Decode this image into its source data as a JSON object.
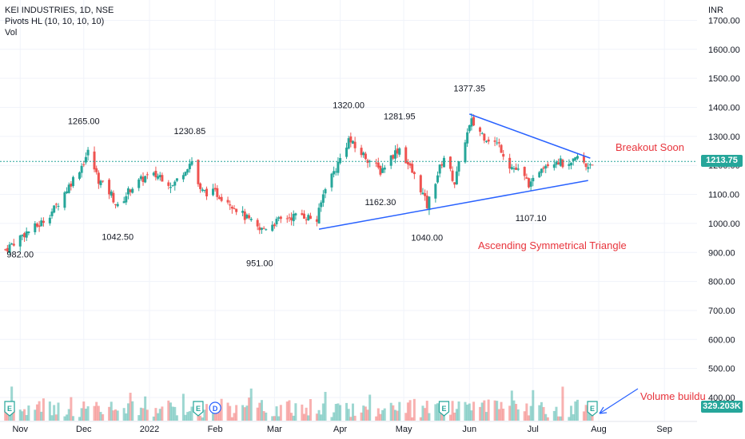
{
  "header": {
    "symbol_line": "KEI INDUSTRIES, 1D, NSE",
    "indicator_pivots": "Pivots HL (10, 10, 10, 10)",
    "indicator_vol": "Vol"
  },
  "price_axis": {
    "currency": "INR",
    "ticks": [
      "1700.00",
      "1600.00",
      "1500.00",
      "1400.00",
      "1300.00",
      "1200.00",
      "1100.00",
      "1000.00",
      "900.00",
      "800.00",
      "700.00",
      "600.00",
      "500.00",
      "400.00"
    ]
  },
  "badges": {
    "last_price": "1213.75",
    "volume": "329.203K",
    "price_color": "#26a69a",
    "volume_color": "#26a69a"
  },
  "time_axis": {
    "labels": [
      "Nov",
      "Dec",
      "2022",
      "Feb",
      "Mar",
      "Apr",
      "May",
      "Jun",
      "Jul",
      "Aug",
      "Sep"
    ]
  },
  "annotations": {
    "breakout": "Breakout Soon",
    "pattern": "Ascending Symmetrical Triangle",
    "volume": "Volume buildu"
  },
  "colors": {
    "up": "#26a69a",
    "down": "#ef5350",
    "trendline": "#2962ff",
    "annotation": "#e8343c",
    "price_line": "#26a69a"
  },
  "chart_data": {
    "type": "candlestick",
    "symbol": "KEI INDUSTRIES",
    "interval": "1D",
    "exchange": "NSE",
    "last_price": 1213.75,
    "last_volume_k": 329.203,
    "ylim": [
      400,
      1700
    ],
    "pivots": [
      {
        "date": "2021-11-01",
        "value": 982.0,
        "type": "low"
      },
      {
        "date": "2021-12-01",
        "value": 1265.0,
        "type": "high"
      },
      {
        "date": "2021-12-17",
        "value": 1042.5,
        "type": "low"
      },
      {
        "date": "2022-01-20",
        "value": 1230.85,
        "type": "high"
      },
      {
        "date": "2022-02-22",
        "value": 951.0,
        "type": "low"
      },
      {
        "date": "2022-04-05",
        "value": 1320.0,
        "type": "high"
      },
      {
        "date": "2022-04-20",
        "value": 1162.3,
        "type": "low"
      },
      {
        "date": "2022-04-29",
        "value": 1281.95,
        "type": "high"
      },
      {
        "date": "2022-05-12",
        "value": 1040.0,
        "type": "low"
      },
      {
        "date": "2022-06-01",
        "value": 1377.35,
        "type": "high"
      },
      {
        "date": "2022-06-30",
        "value": 1107.1,
        "type": "low"
      }
    ],
    "trendlines": [
      {
        "name": "upper",
        "from": {
          "date": "2022-06-01",
          "value": 1377
        },
        "to": {
          "date": "2022-07-28",
          "value": 1225
        }
      },
      {
        "name": "lower",
        "from": {
          "date": "2022-03-22",
          "value": 980
        },
        "to": {
          "date": "2022-07-27",
          "value": 1148
        }
      }
    ],
    "series": [
      {
        "name": "price",
        "points": [
          {
            "date": "2021-10-25",
            "value": 910
          },
          {
            "date": "2021-10-29",
            "value": 935
          },
          {
            "date": "2021-11-03",
            "value": 965
          },
          {
            "date": "2021-11-10",
            "value": 995
          },
          {
            "date": "2021-11-17",
            "value": 1050
          },
          {
            "date": "2021-11-24",
            "value": 1130
          },
          {
            "date": "2021-11-30",
            "value": 1200
          },
          {
            "date": "2021-12-03",
            "value": 1245
          },
          {
            "date": "2021-12-08",
            "value": 1150
          },
          {
            "date": "2021-12-14",
            "value": 1100
          },
          {
            "date": "2021-12-17",
            "value": 1055
          },
          {
            "date": "2021-12-23",
            "value": 1120
          },
          {
            "date": "2021-12-30",
            "value": 1160
          },
          {
            "date": "2022-01-06",
            "value": 1165
          },
          {
            "date": "2022-01-12",
            "value": 1130
          },
          {
            "date": "2022-01-18",
            "value": 1190
          },
          {
            "date": "2022-01-21",
            "value": 1215
          },
          {
            "date": "2022-01-25",
            "value": 1110
          },
          {
            "date": "2022-02-01",
            "value": 1105
          },
          {
            "date": "2022-02-07",
            "value": 1080
          },
          {
            "date": "2022-02-14",
            "value": 1030
          },
          {
            "date": "2022-02-22",
            "value": 975
          },
          {
            "date": "2022-02-28",
            "value": 1000
          },
          {
            "date": "2022-03-07",
            "value": 1020
          },
          {
            "date": "2022-03-14",
            "value": 1030
          },
          {
            "date": "2022-03-21",
            "value": 1010
          },
          {
            "date": "2022-03-25",
            "value": 1130
          },
          {
            "date": "2022-03-30",
            "value": 1190
          },
          {
            "date": "2022-04-05",
            "value": 1290
          },
          {
            "date": "2022-04-08",
            "value": 1260
          },
          {
            "date": "2022-04-13",
            "value": 1230
          },
          {
            "date": "2022-04-20",
            "value": 1180
          },
          {
            "date": "2022-04-25",
            "value": 1230
          },
          {
            "date": "2022-04-29",
            "value": 1260
          },
          {
            "date": "2022-05-04",
            "value": 1190
          },
          {
            "date": "2022-05-09",
            "value": 1120
          },
          {
            "date": "2022-05-12",
            "value": 1060
          },
          {
            "date": "2022-05-17",
            "value": 1170
          },
          {
            "date": "2022-05-20",
            "value": 1230
          },
          {
            "date": "2022-05-25",
            "value": 1140
          },
          {
            "date": "2022-05-30",
            "value": 1290
          },
          {
            "date": "2022-06-02",
            "value": 1350
          },
          {
            "date": "2022-06-08",
            "value": 1300
          },
          {
            "date": "2022-06-15",
            "value": 1270
          },
          {
            "date": "2022-06-20",
            "value": 1200
          },
          {
            "date": "2022-06-24",
            "value": 1180
          },
          {
            "date": "2022-06-30",
            "value": 1130
          },
          {
            "date": "2022-07-05",
            "value": 1200
          },
          {
            "date": "2022-07-12",
            "value": 1220
          },
          {
            "date": "2022-07-18",
            "value": 1190
          },
          {
            "date": "2022-07-22",
            "value": 1230
          },
          {
            "date": "2022-07-26",
            "value": 1195
          },
          {
            "date": "2022-07-29",
            "value": 1213.75
          }
        ]
      }
    ]
  }
}
